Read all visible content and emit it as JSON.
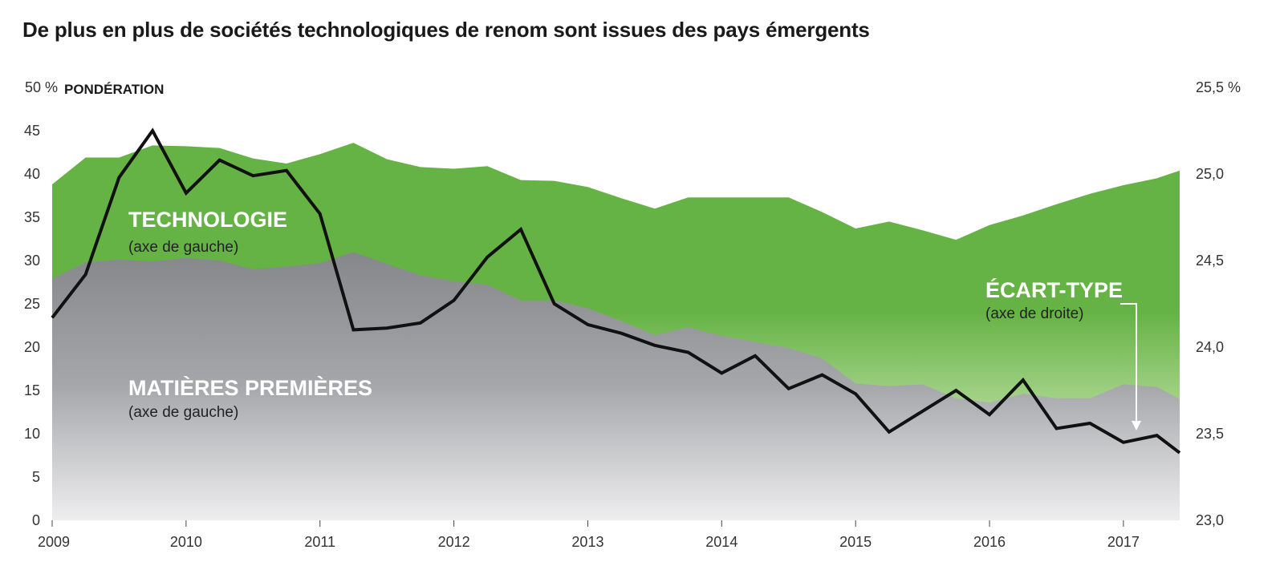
{
  "title": "De plus en plus de sociétés technologiques de renom sont issues des pays émergents",
  "colors": {
    "technology": "#66b345",
    "commodities": "#8c8d91",
    "line": "#111111"
  },
  "chart_data": {
    "type": "area",
    "title": "De plus en plus de sociétés technologiques de renom sont issues des pays émergents",
    "left_axis": {
      "label": "PONDÉRATION",
      "unit_label": "50 %",
      "ticks": [
        "0",
        "5",
        "10",
        "15",
        "20",
        "25",
        "30",
        "35",
        "40",
        "45"
      ],
      "ylim": [
        0,
        50
      ]
    },
    "right_axis": {
      "ticks": [
        "23,0",
        "23,5",
        "24,0",
        "24,5",
        "25,0",
        "25,5 %"
      ],
      "ylim": [
        23.0,
        25.5
      ]
    },
    "x_ticks": [
      "2009",
      "2010",
      "2011",
      "2012",
      "2013",
      "2014",
      "2015",
      "2016",
      "2017"
    ],
    "x": [
      2009.0,
      2009.25,
      2009.5,
      2009.75,
      2010.0,
      2010.25,
      2010.5,
      2010.75,
      2011.0,
      2011.25,
      2011.5,
      2011.75,
      2012.0,
      2012.25,
      2012.5,
      2012.75,
      2013.0,
      2013.25,
      2013.5,
      2013.75,
      2014.0,
      2014.25,
      2014.5,
      2014.75,
      2015.0,
      2015.25,
      2015.5,
      2015.75,
      2016.0,
      2016.25,
      2016.5,
      2016.75,
      2017.0,
      2017.25,
      2017.42
    ],
    "series": [
      {
        "name": "MATIÈRES PREMIÈRES",
        "sublabel": "(axe de gauche)",
        "axis": "left",
        "values": [
          27.9,
          29.8,
          30.1,
          29.9,
          30.3,
          30.0,
          29.0,
          29.3,
          29.7,
          31.0,
          29.6,
          28.3,
          27.6,
          27.2,
          25.4,
          25.4,
          24.5,
          23.0,
          21.4,
          22.3,
          21.3,
          20.6,
          19.9,
          18.7,
          15.8,
          15.5,
          15.7,
          14.1,
          13.6,
          14.6,
          14.1,
          14.1,
          15.7,
          15.4,
          14.0
        ]
      },
      {
        "name": "TECHNOLOGIE",
        "sublabel": "(axe de gauche)",
        "axis": "left",
        "values": [
          38.8,
          41.9,
          41.9,
          43.3,
          43.2,
          43.0,
          41.8,
          41.2,
          42.3,
          43.6,
          41.7,
          40.8,
          40.6,
          40.9,
          39.3,
          39.2,
          38.5,
          37.2,
          36.0,
          37.3,
          37.3,
          37.3,
          37.3,
          35.6,
          33.7,
          34.5,
          33.5,
          32.4,
          34.1,
          35.2,
          36.5,
          37.7,
          38.7,
          39.5,
          40.4
        ]
      },
      {
        "name": "ÉCART-TYPE",
        "sublabel": "(axe de droite)",
        "axis": "right",
        "values": [
          24.17,
          24.42,
          24.98,
          25.25,
          24.89,
          25.08,
          24.99,
          25.02,
          24.77,
          24.1,
          24.11,
          24.14,
          24.27,
          24.52,
          24.68,
          24.25,
          24.13,
          24.08,
          24.01,
          23.97,
          23.85,
          23.95,
          23.76,
          23.84,
          23.73,
          23.51,
          23.63,
          23.75,
          23.61,
          23.81,
          23.53,
          23.56,
          23.45,
          23.49,
          23.39
        ]
      }
    ],
    "legend": "inline labels on chart",
    "grid": false
  }
}
